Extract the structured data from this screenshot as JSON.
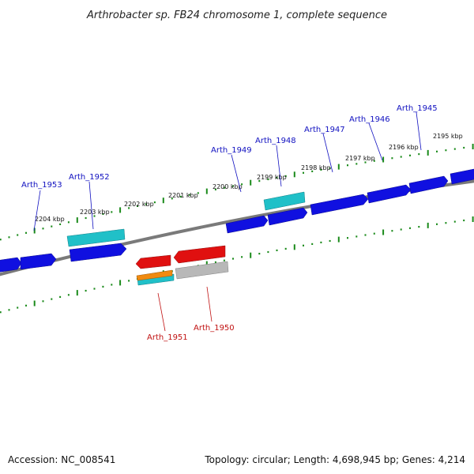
{
  "title": "Arthrobacter sp. FB24 chromosome 1, complete sequence",
  "footer": {
    "accession": "Accession: NC_008541",
    "summary": "Topology: circular; Length: 4,698,945 bp; Genes: 4,214"
  },
  "colors": {
    "forward_gene": "#1010e0",
    "reverse_gene": "#e01010",
    "rna_gene": "#20c0c8",
    "orange_gene": "#f08a10",
    "gray_gene": "#b8b8b8",
    "backbone": "#7a7a7a",
    "tick": "#1a8a1a",
    "label_forward": "#1010c0",
    "label_reverse": "#c01010"
  },
  "kbp_labels": [
    "2195 kbp",
    "2196 kbp",
    "2197 kbp",
    "2198 kbp",
    "2199 kbp",
    "2200 kbp",
    "2201 kbp",
    "2202 kbp",
    "2203 kbp",
    "2204 kbp"
  ],
  "gene_labels": {
    "forward": [
      "Arth_1945",
      "Arth_1946",
      "Arth_1947",
      "Arth_1948",
      "Arth_1949",
      "Arth_1952",
      "Arth_1953"
    ],
    "reverse": [
      "Arth_1950",
      "Arth_1951"
    ]
  }
}
